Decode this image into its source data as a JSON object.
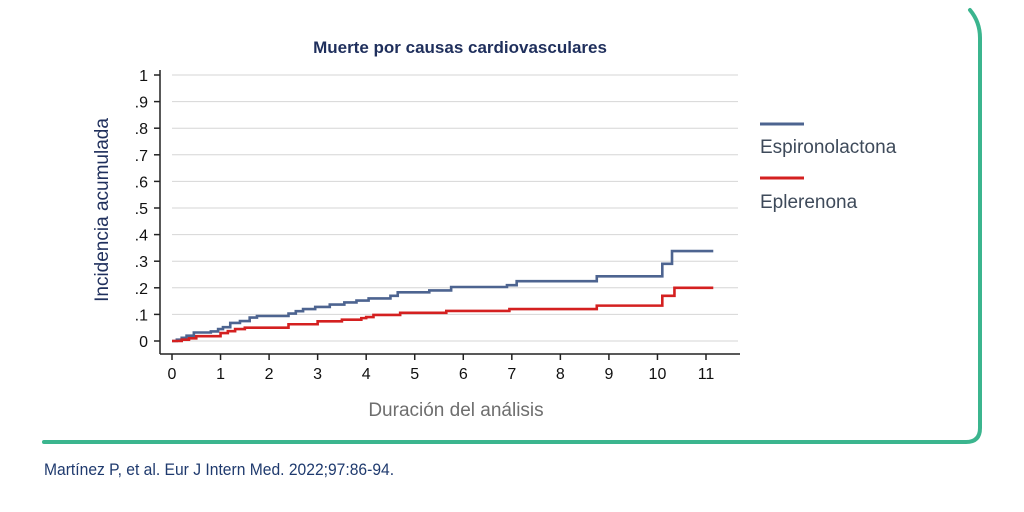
{
  "citation": "Martínez P, et al. Eur J Intern Med. 2022;97:86-94.",
  "colors": {
    "frame": "#3bb58e",
    "espironolactona": "#4d6490",
    "eplerenona": "#d42020",
    "grid": "#d6d6d6",
    "title": "#1f2f5c",
    "ylabel": "#1f2f5c",
    "xlabel": "#6e6e6e"
  },
  "chart_data": {
    "type": "line",
    "title": "Muerte por causas cardiovasculares",
    "xlabel": "Duración del análisis",
    "ylabel": "Incidencia acumulada",
    "xlim": [
      0,
      11.5
    ],
    "ylim": [
      0,
      1
    ],
    "xticks": [
      0,
      1,
      2,
      3,
      4,
      5,
      6,
      7,
      8,
      9,
      10,
      11
    ],
    "xtick_labels": [
      "0",
      "1",
      "2",
      "3",
      "4",
      "5",
      "6",
      "7",
      "8",
      "9",
      "10",
      "11"
    ],
    "yticks": [
      0,
      0.1,
      0.2,
      0.3,
      0.4,
      0.5,
      0.6,
      0.7,
      0.8,
      0.9,
      1
    ],
    "ytick_labels": [
      "0",
      ".1",
      ".2",
      ".3",
      ".4",
      ".5",
      ".6",
      ".7",
      ".8",
      ".9",
      "1"
    ],
    "grid": true,
    "legend": "right",
    "series": [
      {
        "name": "Espironolactona",
        "step": true,
        "x": [
          0,
          0.1,
          0.2,
          0.3,
          0.45,
          0.8,
          0.95,
          1.05,
          1.2,
          1.4,
          1.6,
          1.75,
          2.4,
          2.55,
          2.7,
          2.95,
          3.25,
          3.55,
          3.8,
          4.05,
          4.5,
          4.65,
          5.3,
          5.75,
          6.9,
          7.1,
          8.75,
          10.1,
          10.3,
          11.15
        ],
        "y": [
          0,
          0.005,
          0.012,
          0.02,
          0.032,
          0.036,
          0.045,
          0.052,
          0.068,
          0.075,
          0.088,
          0.094,
          0.103,
          0.112,
          0.12,
          0.128,
          0.137,
          0.145,
          0.152,
          0.16,
          0.17,
          0.183,
          0.19,
          0.203,
          0.21,
          0.225,
          0.243,
          0.29,
          0.338,
          0.338
        ]
      },
      {
        "name": "Eplerenona",
        "step": true,
        "x": [
          0,
          0.2,
          0.35,
          0.5,
          1.0,
          1.15,
          1.3,
          1.5,
          2.4,
          3.0,
          3.5,
          3.9,
          4.0,
          4.15,
          4.7,
          5.65,
          6.95,
          8.75,
          10.1,
          10.35,
          11.15
        ],
        "y": [
          0,
          0.005,
          0.01,
          0.018,
          0.03,
          0.037,
          0.045,
          0.05,
          0.063,
          0.074,
          0.08,
          0.086,
          0.09,
          0.098,
          0.106,
          0.113,
          0.12,
          0.133,
          0.17,
          0.2,
          0.2
        ]
      }
    ]
  }
}
